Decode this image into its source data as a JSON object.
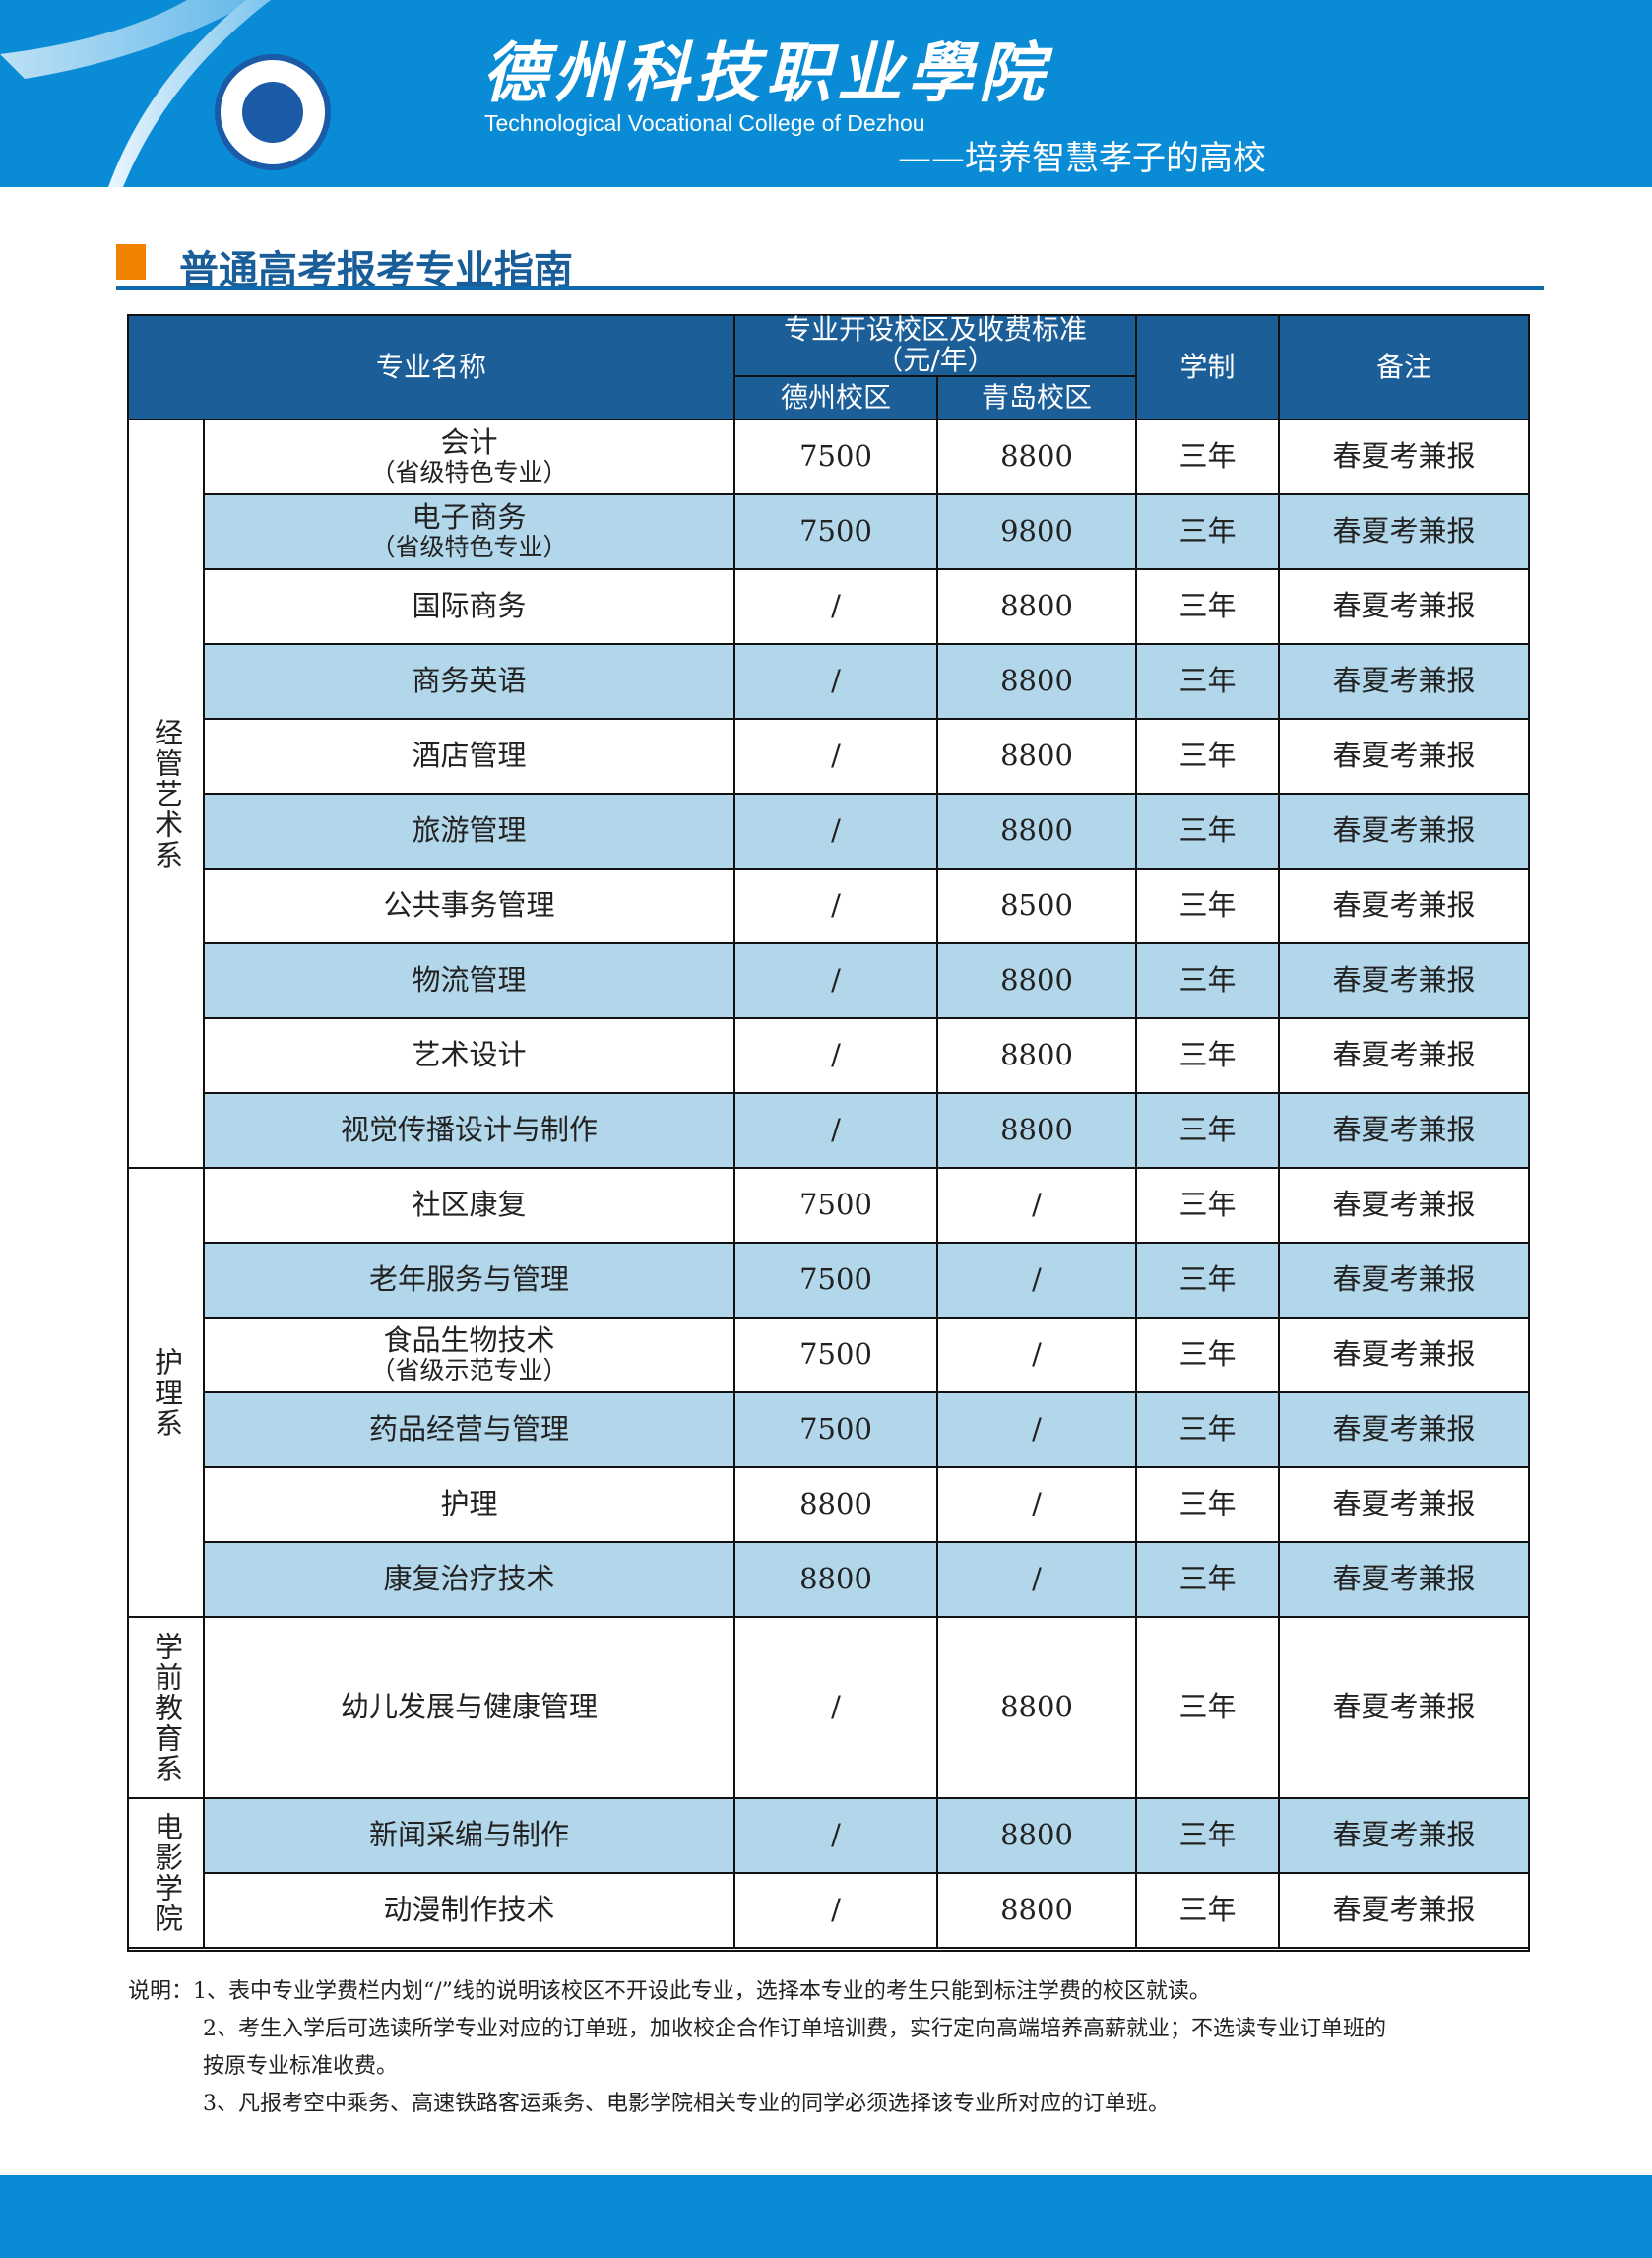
{
  "header": {
    "school_name_cn": "德州科技职业學院",
    "school_name_en": "Technological Vocational College of Dezhou",
    "slogan": "——培养智慧孝子的高校",
    "logo_text": "德州科技职业学院 TECHNOLOGICAL VOCATIONAL COLLEGE OF DEZHOU"
  },
  "section_title": "普通高考报考专业指南",
  "table": {
    "headers": {
      "major": "专业名称",
      "campus_fee": "专业开设校区及收费标准（元/年）",
      "dezhou": "德州校区",
      "qingdao": "青岛校区",
      "duration": "学制",
      "remarks": "备注"
    },
    "groups": [
      {
        "name": "经管艺术系",
        "rows": [
          {
            "major": "会计",
            "note": "（省级特色专业）",
            "dezhou": "7500",
            "qingdao": "8800",
            "duration": "三年",
            "remark": "春夏考兼报"
          },
          {
            "major": "电子商务",
            "note": "（省级特色专业）",
            "dezhou": "7500",
            "qingdao": "9800",
            "duration": "三年",
            "remark": "春夏考兼报"
          },
          {
            "major": "国际商务",
            "dezhou": "/",
            "qingdao": "8800",
            "duration": "三年",
            "remark": "春夏考兼报"
          },
          {
            "major": "商务英语",
            "dezhou": "/",
            "qingdao": "8800",
            "duration": "三年",
            "remark": "春夏考兼报"
          },
          {
            "major": "酒店管理",
            "dezhou": "/",
            "qingdao": "8800",
            "duration": "三年",
            "remark": "春夏考兼报"
          },
          {
            "major": "旅游管理",
            "dezhou": "/",
            "qingdao": "8800",
            "duration": "三年",
            "remark": "春夏考兼报"
          },
          {
            "major": "公共事务管理",
            "dezhou": "/",
            "qingdao": "8500",
            "duration": "三年",
            "remark": "春夏考兼报"
          },
          {
            "major": "物流管理",
            "dezhou": "/",
            "qingdao": "8800",
            "duration": "三年",
            "remark": "春夏考兼报"
          },
          {
            "major": "艺术设计",
            "dezhou": "/",
            "qingdao": "8800",
            "duration": "三年",
            "remark": "春夏考兼报"
          },
          {
            "major": "视觉传播设计与制作",
            "dezhou": "/",
            "qingdao": "8800",
            "duration": "三年",
            "remark": "春夏考兼报"
          }
        ]
      },
      {
        "name": "护理系",
        "rows": [
          {
            "major": "社区康复",
            "dezhou": "7500",
            "qingdao": "/",
            "duration": "三年",
            "remark": "春夏考兼报"
          },
          {
            "major": "老年服务与管理",
            "dezhou": "7500",
            "qingdao": "/",
            "duration": "三年",
            "remark": "春夏考兼报"
          },
          {
            "major": "食品生物技术",
            "note": "（省级示范专业）",
            "dezhou": "7500",
            "qingdao": "/",
            "duration": "三年",
            "remark": "春夏考兼报"
          },
          {
            "major": "药品经营与管理",
            "dezhou": "7500",
            "qingdao": "/",
            "duration": "三年",
            "remark": "春夏考兼报"
          },
          {
            "major": "护理",
            "dezhou": "8800",
            "qingdao": "/",
            "duration": "三年",
            "remark": "春夏考兼报"
          },
          {
            "major": "康复治疗技术",
            "dezhou": "8800",
            "qingdao": "/",
            "duration": "三年",
            "remark": "春夏考兼报"
          }
        ]
      },
      {
        "name": "学前教育系",
        "rows": [
          {
            "major": "幼儿发展与健康管理",
            "dezhou": "/",
            "qingdao": "8800",
            "duration": "三年",
            "remark": "春夏考兼报",
            "tall": true
          }
        ]
      },
      {
        "name": "电影学院",
        "rows": [
          {
            "major": "新闻采编与制作",
            "dezhou": "/",
            "qingdao": "8800",
            "duration": "三年",
            "remark": "春夏考兼报"
          },
          {
            "major": "动漫制作技术",
            "dezhou": "/",
            "qingdao": "8800",
            "duration": "三年",
            "remark": "春夏考兼报"
          }
        ]
      }
    ]
  },
  "notes": {
    "label": "说明：",
    "items": [
      "1、表中专业学费栏内划“/”线的说明该校区不开设此专业，选择本专业的考生只能到标注学费的校区就读。",
      "2、考生入学后可选读所学专业对应的订单班，加收校企合作订单培训费，实行定向高端培养高薪就业；不选读专业订单班的",
      "按原专业标准收费。",
      "3、凡报考空中乘务、高速铁路客运乘务、电影学院相关专业的同学必须选择该专业所对应的订单班。"
    ]
  },
  "colors": {
    "brand_blue": "#0a8bd6",
    "header_dark": "#1b5e98",
    "row_alt": "#b3d7ea",
    "accent_orange": "#f08200"
  }
}
